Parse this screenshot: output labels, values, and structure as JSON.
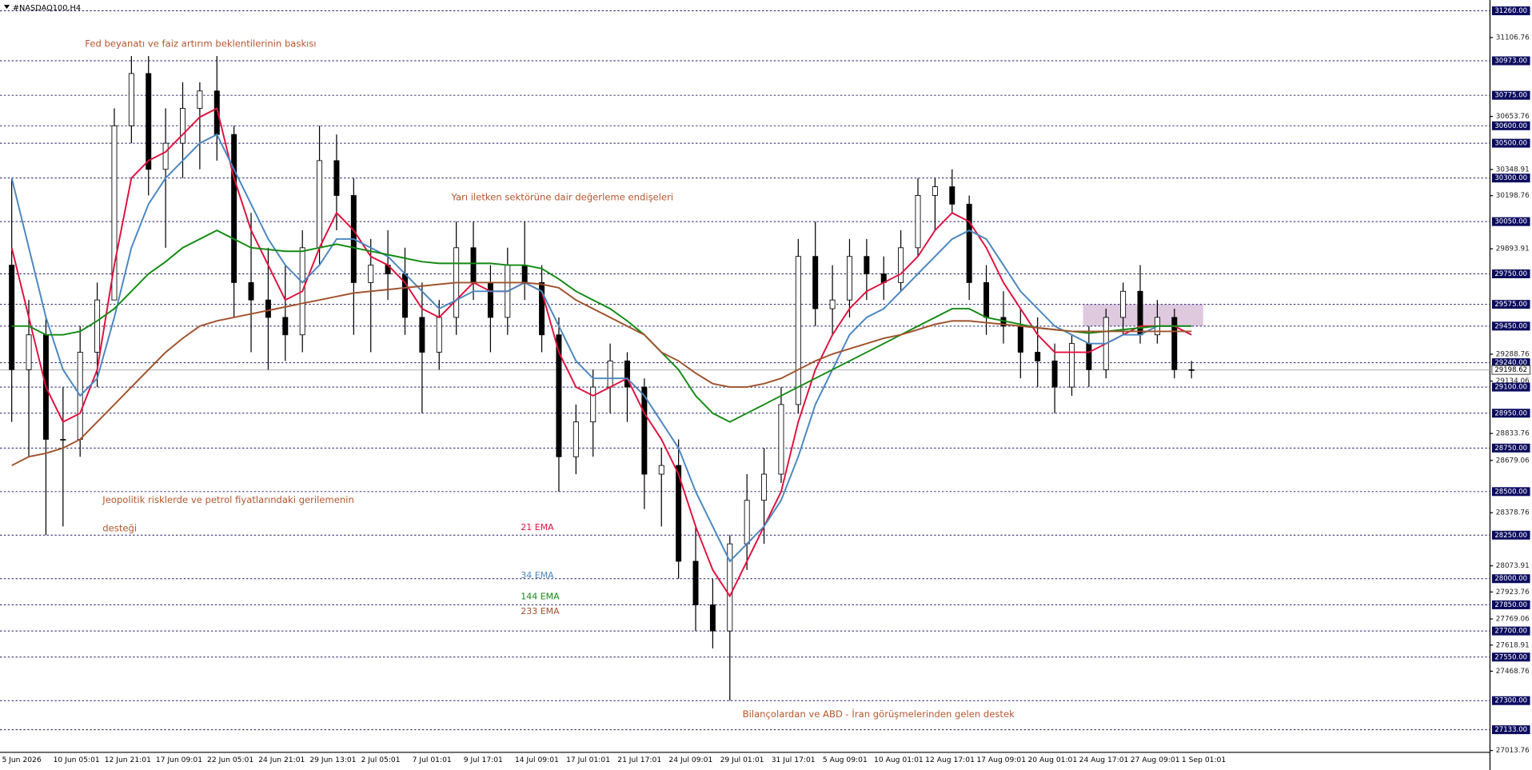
{
  "chart_data": {
    "type": "candlestick",
    "title": "#NASDAQ100,H4",
    "categories": [
      "5 Jun 2026",
      null,
      null,
      "10 Jun 05:01",
      null,
      null,
      "12 Jun 21:01",
      null,
      null,
      "17 Jun 09:01",
      null,
      null,
      "22 Jun 05:01",
      null,
      null,
      "24 Jun 21:01",
      null,
      null,
      "29 Jun 13:01",
      null,
      null,
      "2 Jul 05:01",
      null,
      null,
      "7 Jul 01:01",
      null,
      null,
      "9 Jul 17:01",
      null,
      null,
      "14 Jul 09:01",
      null,
      null,
      "17 Jul 01:01",
      null,
      null,
      "21 Jul 17:01",
      null,
      null,
      "24 Jul 09:01",
      null,
      null,
      "29 Jul 01:01",
      null,
      null,
      "31 Jul 17:01",
      null,
      null,
      "5 Aug 09:01",
      null,
      null,
      "10 Aug 01:01",
      null,
      null,
      "12 Aug 17:01",
      null,
      null,
      "17 Aug 09:01",
      null,
      null,
      "20 Aug 01:01",
      null,
      null,
      "24 Aug 17:01",
      null,
      null,
      "27 Aug 09:01",
      null,
      null,
      "1 Sep 01:01"
    ],
    "open": [
      29800,
      29200,
      29400,
      28800,
      28800,
      29300,
      29600,
      30600,
      30900,
      30350,
      30500,
      30700,
      30800,
      30550,
      29700,
      29600,
      29500,
      29400,
      29900,
      30400,
      30200,
      29700,
      29800,
      29750,
      29500,
      29300,
      29500,
      29900,
      29700,
      29500,
      29800,
      29700,
      29400,
      28700,
      28900,
      29100,
      29250,
      29100,
      28600,
      28650,
      28100,
      27850,
      27700,
      28200,
      28450,
      28600,
      29000,
      29850,
      29550,
      29600,
      29850,
      29750,
      29700,
      29900,
      30200,
      30250,
      30150,
      29700,
      29500,
      29450,
      29300,
      29250,
      29100,
      29350,
      29200,
      29500,
      29650,
      29400,
      29500,
      29200
    ],
    "high": [
      30300,
      29600,
      29500,
      29100,
      29450,
      29700,
      30700,
      31000,
      31000,
      30700,
      30850,
      30850,
      31000,
      30600,
      30100,
      29900,
      29800,
      30000,
      30600,
      30550,
      30300,
      29950,
      30000,
      29900,
      29700,
      29600,
      30050,
      30050,
      29800,
      29900,
      30050,
      29800,
      29500,
      29000,
      29200,
      29350,
      29300,
      29150,
      28750,
      28800,
      28300,
      28000,
      28250,
      28600,
      28750,
      29100,
      29950,
      30050,
      29800,
      29950,
      29950,
      29850,
      30000,
      30300,
      30300,
      30350,
      30200,
      29800,
      29650,
      29550,
      29500,
      29350,
      29400,
      29450,
      29550,
      29700,
      29800,
      29600,
      29550,
      29250
    ],
    "low": [
      28900,
      28700,
      28250,
      28300,
      28700,
      29100,
      29600,
      30500,
      30200,
      29900,
      30300,
      30350,
      30400,
      29500,
      29300,
      29200,
      29250,
      29300,
      29800,
      30000,
      29400,
      29300,
      29600,
      29400,
      28950,
      29200,
      29400,
      29600,
      29300,
      29400,
      29600,
      29300,
      28500,
      28600,
      28700,
      28950,
      28900,
      28400,
      28300,
      28000,
      27700,
      27600,
      27300,
      28050,
      28200,
      28550,
      28950,
      29450,
      29400,
      29500,
      29600,
      29600,
      29650,
      29850,
      30000,
      30100,
      29600,
      29400,
      29350,
      29150,
      29100,
      28950,
      29050,
      29100,
      29150,
      29400,
      29350,
      29350,
      29150,
      29150
    ],
    "close": [
      29200,
      29400,
      28800,
      28800,
      29300,
      29600,
      30600,
      30900,
      30350,
      30500,
      30700,
      30800,
      30550,
      29700,
      29600,
      29500,
      29400,
      29900,
      30400,
      30200,
      29700,
      29800,
      29750,
      29500,
      29300,
      29500,
      29900,
      29700,
      29500,
      29800,
      29700,
      29400,
      28700,
      28900,
      29100,
      29250,
      29100,
      28600,
      28650,
      28100,
      27850,
      27700,
      28200,
      28450,
      28600,
      29000,
      29850,
      29550,
      29600,
      29850,
      29750,
      29700,
      29900,
      30200,
      30250,
      30150,
      29700,
      29500,
      29450,
      29300,
      29250,
      29100,
      29350,
      29200,
      29500,
      29650,
      29400,
      29500,
      29200,
      29199
    ],
    "series": [
      {
        "name": "21 EMA",
        "color": "#e0103c",
        "values": [
          29900,
          29500,
          29100,
          28900,
          28950,
          29200,
          29800,
          30300,
          30400,
          30450,
          30550,
          30650,
          30700,
          30300,
          30000,
          29800,
          29600,
          29650,
          29900,
          30100,
          30000,
          29850,
          29800,
          29700,
          29550,
          29500,
          29600,
          29700,
          29650,
          29650,
          29700,
          29650,
          29300,
          29100,
          29050,
          29100,
          29150,
          28950,
          28800,
          28600,
          28300,
          28050,
          27900,
          28100,
          28300,
          28500,
          28900,
          29200,
          29400,
          29550,
          29650,
          29700,
          29750,
          29850,
          30000,
          30100,
          30050,
          29900,
          29700,
          29550,
          29400,
          29300,
          29300,
          29300,
          29350,
          29400,
          29450,
          29450,
          29450,
          29400
        ]
      },
      {
        "name": "34 EMA",
        "color": "#4a86c0",
        "values": [
          30300,
          29900,
          29500,
          29200,
          29050,
          29150,
          29500,
          29900,
          30150,
          30300,
          30400,
          30500,
          30550,
          30350,
          30150,
          29950,
          29800,
          29700,
          29800,
          29950,
          29950,
          29900,
          29850,
          29750,
          29650,
          29550,
          29600,
          29650,
          29650,
          29650,
          29700,
          29650,
          29450,
          29250,
          29150,
          29150,
          29150,
          29050,
          28900,
          28750,
          28500,
          28300,
          28100,
          28200,
          28300,
          28450,
          28700,
          29000,
          29200,
          29400,
          29500,
          29550,
          29650,
          29750,
          29850,
          29950,
          30000,
          29950,
          29800,
          29650,
          29550,
          29450,
          29400,
          29350,
          29350,
          29400,
          29400,
          29450,
          29450,
          29450
        ]
      },
      {
        "name": "144 EMA",
        "color": "#138a13",
        "values": [
          29450,
          29450,
          29400,
          29400,
          29420,
          29480,
          29550,
          29650,
          29750,
          29820,
          29900,
          29950,
          30000,
          29950,
          29900,
          29890,
          29880,
          29880,
          29900,
          29920,
          29900,
          29880,
          29860,
          29840,
          29820,
          29810,
          29810,
          29810,
          29810,
          29800,
          29800,
          29780,
          29720,
          29650,
          29600,
          29550,
          29480,
          29400,
          29300,
          29200,
          29050,
          28950,
          28900,
          28950,
          29000,
          29050,
          29100,
          29150,
          29200,
          29250,
          29300,
          29350,
          29400,
          29450,
          29500,
          29550,
          29550,
          29500,
          29480,
          29460,
          29440,
          29430,
          29420,
          29410,
          29420,
          29430,
          29440,
          29450,
          29450,
          29450
        ]
      },
      {
        "name": "233 EMA",
        "color": "#a0522d",
        "values": [
          28650,
          28700,
          28720,
          28750,
          28800,
          28900,
          29000,
          29100,
          29200,
          29300,
          29380,
          29450,
          29480,
          29500,
          29520,
          29540,
          29560,
          29580,
          29600,
          29620,
          29640,
          29650,
          29660,
          29670,
          29680,
          29690,
          29700,
          29700,
          29700,
          29700,
          29700,
          29690,
          29670,
          29600,
          29550,
          29500,
          29450,
          29400,
          29300,
          29250,
          29180,
          29120,
          29100,
          29100,
          29120,
          29150,
          29200,
          29250,
          29290,
          29320,
          29350,
          29380,
          29400,
          29430,
          29460,
          29480,
          29480,
          29470,
          29460,
          29450,
          29440,
          29430,
          29420,
          29420,
          29420,
          29420,
          29420,
          29420,
          29420,
          29420
        ]
      }
    ],
    "ylim": [
      27003,
      31305
    ],
    "yticks": [
      31106.76,
      30653.76,
      30348.91,
      30198.76,
      29893.91,
      29288.76,
      29134.06,
      28833.76,
      28679.06,
      28378.76,
      28073.91,
      27923.76,
      27769.06,
      27618.91,
      27468.76,
      27013.76
    ],
    "levels": [
      {
        "value": 31260,
        "label": "31260.00"
      },
      {
        "value": 30973,
        "label": "30973.00"
      },
      {
        "value": 30775,
        "label": "30775.00"
      },
      {
        "value": 30600,
        "label": "30600.00"
      },
      {
        "value": 30500,
        "label": "30500.00"
      },
      {
        "value": 30300,
        "label": "30300.00"
      },
      {
        "value": 30050,
        "label": "30050.00"
      },
      {
        "value": 29750,
        "label": "29750.00"
      },
      {
        "value": 29575,
        "label": "29575.00"
      },
      {
        "value": 29450,
        "label": "29450.00"
      },
      {
        "value": 29240,
        "label": "29240.00"
      },
      {
        "value": 29100,
        "label": "29100.00"
      },
      {
        "value": 28950,
        "label": "28950.00"
      },
      {
        "value": 28750,
        "label": "28750.00"
      },
      {
        "value": 28500,
        "label": "28500.00"
      },
      {
        "value": 28250,
        "label": "28250.00"
      },
      {
        "value": 28000,
        "label": "28000.00"
      },
      {
        "value": 27850,
        "label": "27850.00"
      },
      {
        "value": 27700,
        "label": "27700.00"
      },
      {
        "value": 27550,
        "label": "27550.00"
      },
      {
        "value": 27300,
        "label": "27300.00"
      },
      {
        "value": 27133,
        "label": "27133.00"
      }
    ],
    "last_price": 29198.62,
    "zone": {
      "high": 29575,
      "low": 29450,
      "color": "#d8bfd8"
    },
    "annotations": [
      "Fed beyanatı ve faiz artırım beklentilerinin baskısı",
      "Yarı iletken sektörüne dair değerleme endişeleri",
      "Jeopolitik risklerde ve petrol fiyatlarındaki gerilemenin",
      "desteği",
      "Bilançolardan ve ABD - İran görüşmelerinden gelen destek"
    ]
  }
}
